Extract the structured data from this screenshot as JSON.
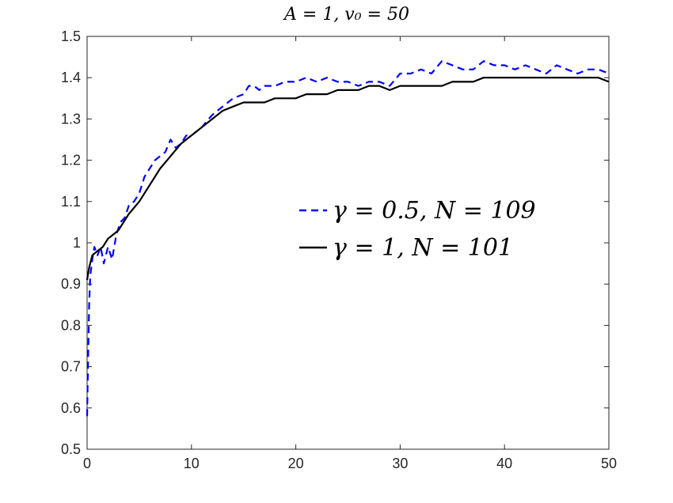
{
  "chart_data": {
    "type": "line",
    "title": "A = 1, v₀ = 50",
    "xlabel": "",
    "ylabel": "",
    "xlim": [
      0,
      50
    ],
    "ylim": [
      0.5,
      1.5
    ],
    "xticks": [
      0,
      10,
      20,
      30,
      40,
      50
    ],
    "xtick_labels": [
      "0",
      "10",
      "20",
      "30",
      "40",
      "50"
    ],
    "yticks": [
      0.5,
      0.6,
      0.7,
      0.8,
      0.9,
      1.0,
      1.1,
      1.2,
      1.3,
      1.4,
      1.5
    ],
    "ytick_labels": [
      "0.5",
      "0.6",
      "0.7",
      "0.8",
      "0.9",
      "1",
      "1.1",
      "1.2",
      "1.3",
      "1.4",
      "1.5"
    ],
    "grid": false,
    "legend_position": "center-right",
    "series": [
      {
        "name": "γ = 0.5, N = 109",
        "color": "#0000ff",
        "style": "dashed",
        "x": [
          0,
          0.1,
          0.2,
          0.3,
          0.5,
          0.7,
          1.0,
          1.3,
          1.6,
          2.0,
          2.4,
          2.8,
          3.2,
          3.6,
          4.0,
          4.5,
          5.0,
          5.5,
          6.0,
          6.5,
          7.0,
          7.5,
          8.0,
          8.5,
          9.0,
          9.5,
          10,
          11,
          12,
          13,
          14,
          15,
          15.5,
          16,
          16.5,
          17,
          18,
          19,
          20,
          21,
          22,
          23,
          24,
          25,
          26,
          27,
          28,
          29,
          30,
          31,
          32,
          33,
          34,
          35,
          36,
          37,
          38,
          39,
          40,
          41,
          42,
          43,
          44,
          45,
          46,
          47,
          48,
          49,
          50
        ],
        "y": [
          0.58,
          0.72,
          0.85,
          0.92,
          0.96,
          0.99,
          0.97,
          0.99,
          0.95,
          0.99,
          0.96,
          1.02,
          1.05,
          1.06,
          1.09,
          1.1,
          1.12,
          1.16,
          1.18,
          1.2,
          1.21,
          1.22,
          1.25,
          1.23,
          1.24,
          1.26,
          1.26,
          1.28,
          1.31,
          1.33,
          1.35,
          1.36,
          1.38,
          1.38,
          1.37,
          1.38,
          1.38,
          1.39,
          1.39,
          1.4,
          1.39,
          1.4,
          1.39,
          1.39,
          1.38,
          1.39,
          1.39,
          1.38,
          1.41,
          1.41,
          1.42,
          1.41,
          1.44,
          1.43,
          1.42,
          1.42,
          1.44,
          1.43,
          1.43,
          1.42,
          1.43,
          1.42,
          1.41,
          1.43,
          1.42,
          1.41,
          1.42,
          1.42,
          1.41
        ]
      },
      {
        "name": "γ = 1, N = 101",
        "color": "#000000",
        "style": "solid",
        "x": [
          0,
          0.2,
          0.5,
          1.0,
          1.5,
          2.0,
          2.5,
          3.0,
          3.5,
          4.0,
          5.0,
          6.0,
          7.0,
          8.0,
          9.0,
          10,
          11,
          12,
          13,
          14,
          15,
          16,
          17,
          18,
          19,
          20,
          21,
          22,
          23,
          24,
          25,
          26,
          27,
          28,
          29,
          30,
          31,
          32,
          33,
          34,
          35,
          36,
          37,
          38,
          39,
          40,
          41,
          42,
          43,
          44,
          45,
          46,
          47,
          48,
          49,
          50
        ],
        "y": [
          0.91,
          0.94,
          0.97,
          0.98,
          0.99,
          1.01,
          1.02,
          1.03,
          1.05,
          1.07,
          1.1,
          1.14,
          1.18,
          1.21,
          1.24,
          1.26,
          1.28,
          1.3,
          1.32,
          1.33,
          1.34,
          1.34,
          1.34,
          1.35,
          1.35,
          1.35,
          1.36,
          1.36,
          1.36,
          1.37,
          1.37,
          1.37,
          1.38,
          1.38,
          1.37,
          1.38,
          1.38,
          1.38,
          1.38,
          1.38,
          1.39,
          1.39,
          1.39,
          1.4,
          1.4,
          1.4,
          1.4,
          1.4,
          1.4,
          1.4,
          1.4,
          1.4,
          1.4,
          1.4,
          1.4,
          1.39
        ]
      }
    ]
  }
}
